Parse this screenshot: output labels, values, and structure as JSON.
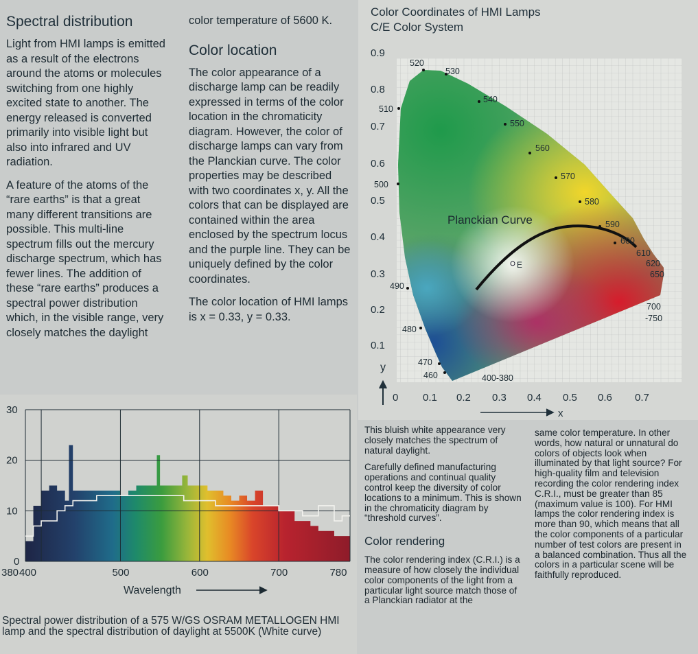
{
  "col1": {
    "heading": "Spectral distribution",
    "p1": "Light from HMI lamps is emitted as a result of the electrons around the atoms or molecules switching from one highly excited state to another. The energy released is converted primarily into visible light but also into infrared and UV radiation.",
    "p2": "A feature of the atoms of the “rare earths” is that a great many different transitions are possible. This multi-line spectrum fills out the mercury discharge spectrum, which has fewer lines. The addition of these “rare earths” produces a spectral power distribution which, in the visible range, very closely matches the daylight"
  },
  "col2": {
    "cont": "color temperature of 5600 K.",
    "heading": "Color location",
    "p1": "The color appearance of a discharge lamp can be readily expressed in terms of the color location in the chromaticity diagram. However, the color of discharge lamps can vary from the Planckian curve. The color properties may be described with two coordinates x, y. All the colors that can be displayed are contained within the area enclosed by the spectrum locus and the purple line. They can be uniquely defined by the color coordinates.",
    "p2": "The color location of HMI lamps is x = 0.33, y = 0.33."
  },
  "cie": {
    "title1": "Color Coordinates of HMI Lamps",
    "title2": "C/E Color System",
    "curve_label": "Planckian Curve",
    "point_label": "E",
    "x_axis_label": "x",
    "y_axis_label": "y",
    "x_ticks": [
      "0",
      "0.1",
      "0.2",
      "0.3",
      "0.4",
      "0.5",
      "0.6",
      "0.7"
    ],
    "y_ticks": [
      "0.1",
      "0.2",
      "0.3",
      "0.4",
      "0.5",
      "0.6",
      "0.7",
      "0.8",
      "0.9"
    ],
    "wavelength_labels": [
      "520",
      "530",
      "540",
      "550",
      "560",
      "570",
      "580",
      "590",
      "600",
      "610",
      "620",
      "650",
      "700",
      "-750",
      "510",
      "500",
      "490",
      "480",
      "470",
      "460",
      "400-380"
    ]
  },
  "chart_data": {
    "type": "bar",
    "title": "",
    "xlabel": "Wavelength",
    "ylabel": "",
    "x_ticks": [
      "380",
      "400",
      "500",
      "600",
      "700",
      "780"
    ],
    "y_ticks": [
      "0",
      "10",
      "20",
      "30"
    ],
    "xlim": [
      380,
      790
    ],
    "ylim": [
      0,
      30
    ],
    "series": [
      {
        "x": [
          380,
          390,
          400,
          410,
          420,
          430,
          435,
          440,
          450,
          460,
          470,
          480,
          490,
          500,
          510,
          520,
          530,
          540,
          546,
          550,
          560,
          570,
          578,
          585,
          590,
          600,
          610,
          620,
          630,
          640,
          650,
          660,
          670,
          680,
          690,
          700,
          710,
          720,
          730,
          740,
          750,
          760,
          770,
          780
        ],
        "values": [
          4,
          11,
          14,
          15,
          14,
          12,
          23,
          14,
          14,
          14,
          14,
          14,
          14,
          13,
          14,
          15,
          15,
          15,
          21,
          15,
          15,
          15,
          17,
          15,
          15,
          15,
          14,
          14,
          13,
          12,
          13,
          12,
          14,
          11,
          11,
          10,
          10,
          8,
          8,
          7,
          6,
          6,
          5,
          5
        ]
      },
      {
        "x": [
          380,
          390,
          400,
          410,
          420,
          430,
          440,
          450,
          460,
          470,
          480,
          490,
          500,
          510,
          520,
          530,
          540,
          550,
          560,
          570,
          580,
          590,
          600,
          610,
          620,
          630,
          640,
          650,
          660,
          670,
          680,
          690,
          700,
          710,
          720,
          730,
          740,
          750,
          760,
          770,
          780
        ],
        "values": [
          5,
          7,
          8,
          8,
          10,
          11,
          12,
          12,
          12,
          13,
          13,
          13,
          13,
          13,
          13,
          13,
          13,
          13,
          13,
          13,
          12,
          12,
          12,
          12,
          11,
          11,
          11,
          11,
          11,
          11,
          11,
          11,
          10,
          10,
          10,
          9,
          9,
          11,
          11,
          8,
          9
        ]
      }
    ]
  },
  "caption_left": "Spectral power distribution of a 575 W/GS OSRAM METALLOGEN HMI lamp and the spectral distribution of daylight at 5500K (White curve)",
  "bottom_right": {
    "p1": "This bluish white appearance very closely matches the spectrum of natural daylight.",
    "p2": "Carefully defined manufacturing operations and continual quality control keep the diversity of color locations to a minimum. This is shown in the chromaticity diagram by “threshold curves”.",
    "heading": "Color rendering",
    "p3": "The color rendering index (C.R.I.) is a measure of how closely the individual color components of the light from a particular light source match those of a Planckian radiator at the",
    "p4": "same color temperature. In other words, how natural or unnatural do colors of objects look when illuminated by that light source? For high-quality film and television recording the color rendering index C.R.I., must be greater than 85 (maximum value is 100). For HMI lamps the color rendering index is more than 90, which means that all the color components of a particular number of test colors are present in a balanced combination. Thus all the colors in a particular scene will be faithfully reproduced."
  }
}
